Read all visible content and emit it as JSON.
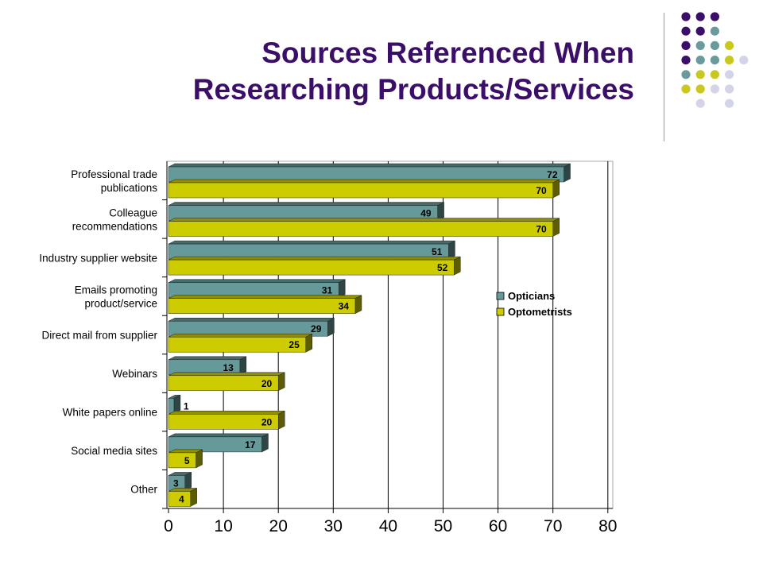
{
  "slide": {
    "title_line1": "Sources Referenced When",
    "title_line2": "Researching Products/Services"
  },
  "colors": {
    "title": "#3b0f68",
    "opticians": "#669999",
    "optometrists": "#cccc00",
    "dot_purple": "#3b0f68",
    "dot_teal": "#6a9a9a",
    "dot_olive": "#c8c820",
    "dot_lavender": "#d4d4e8"
  },
  "decor_dots": [
    [
      "purple",
      "purple",
      "purple",
      null
    ],
    [
      "purple",
      "purple",
      "teal",
      null
    ],
    [
      "purple",
      "teal",
      "teal",
      "olive"
    ],
    [
      "purple",
      "teal",
      "teal",
      "olive",
      "lavender"
    ],
    [
      "teal",
      "olive",
      "olive",
      "lavender"
    ],
    [
      "olive",
      "olive",
      "lavender",
      "lavender"
    ],
    [
      null,
      "lavender",
      null,
      "lavender"
    ]
  ],
  "chart_data": {
    "type": "bar",
    "orientation": "horizontal",
    "categories": [
      [
        "Professional trade",
        "publications"
      ],
      [
        "Colleague",
        "recommendations"
      ],
      [
        "Industry supplier website"
      ],
      [
        "Emails promoting",
        "product/service"
      ],
      [
        "Direct mail from supplier"
      ],
      [
        "Webinars"
      ],
      [
        "White papers online"
      ],
      [
        "Social media sites"
      ],
      [
        "Other"
      ]
    ],
    "series": [
      {
        "name": "Opticians",
        "values": [
          72,
          49,
          51,
          31,
          29,
          13,
          1,
          17,
          3
        ]
      },
      {
        "name": "Optometrists",
        "values": [
          70,
          70,
          52,
          34,
          25,
          20,
          20,
          5,
          4
        ]
      }
    ],
    "xlim": [
      0,
      80
    ],
    "xticks": [
      0,
      10,
      20,
      30,
      40,
      50,
      60,
      70,
      80
    ],
    "grid": true,
    "legend_position": "right",
    "data_labels": true
  }
}
